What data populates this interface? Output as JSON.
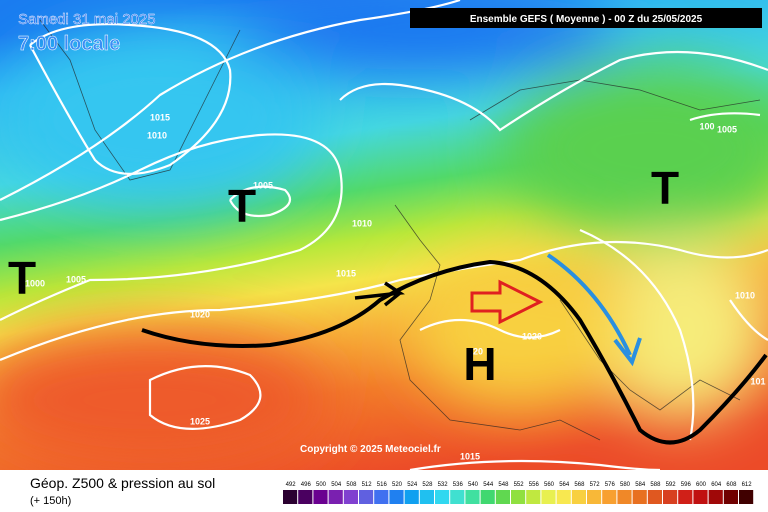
{
  "header": {
    "date": "Samedi 31 mai 2025",
    "time": "7:00 locale",
    "run": "Ensemble GEFS  ( Moyenne )  -  00 Z du 25/05/2025"
  },
  "map": {
    "isobar_labels": [
      "1015",
      "1010",
      "1005",
      "1010",
      "1005",
      "1000",
      "1020",
      "1015",
      "20",
      "1020",
      "1025",
      "1015",
      "100",
      "1005",
      "1010",
      "101"
    ],
    "centers": [
      "T",
      "T",
      "T",
      "H"
    ],
    "copyright": "Copyright © 2025 Meteociel.fr"
  },
  "footer": {
    "title": "Géop. Z500 & pression au sol",
    "lead": "(+ 150h)",
    "scale": [
      "492",
      "496",
      "500",
      "504",
      "508",
      "512",
      "516",
      "520",
      "524",
      "528",
      "532",
      "536",
      "540",
      "544",
      "548",
      "552",
      "556",
      "560",
      "564",
      "568",
      "572",
      "576",
      "580",
      "584",
      "588",
      "592",
      "596",
      "600",
      "604",
      "608",
      "612"
    ]
  }
}
